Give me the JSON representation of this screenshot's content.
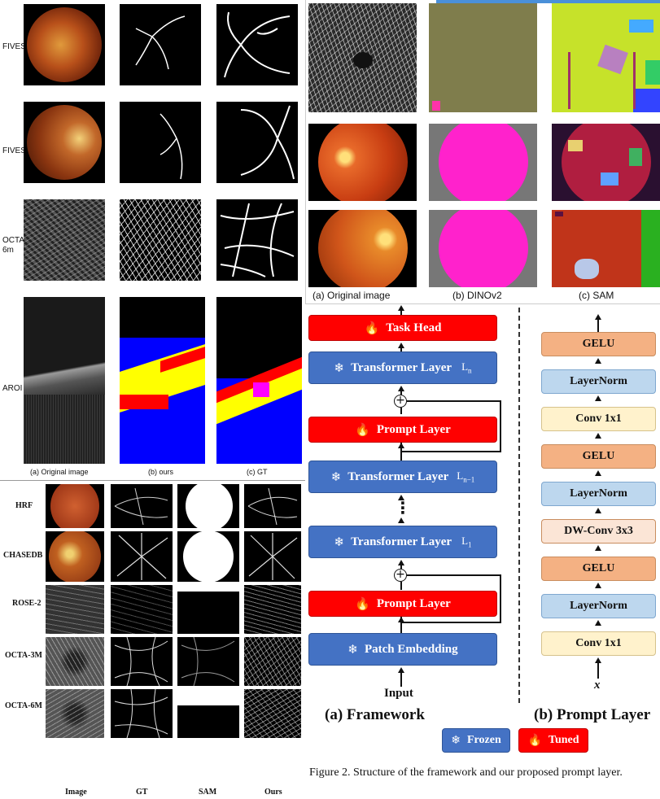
{
  "panel_top_left": {
    "rows": [
      "FIVES",
      "FIVES",
      "OCTA 6m",
      "AROI"
    ],
    "captions": [
      "(a)  Original image",
      "(b)  ours",
      "(c)  GT"
    ]
  },
  "panel_top_right": {
    "captions": [
      "(a)  Original image",
      "(b)  DINOv2",
      "(c)  SAM"
    ]
  },
  "panel_bottom_left": {
    "rows": [
      "HRF",
      "CHASEDB",
      "ROSE-2",
      "OCTA-3M",
      "OCTA-6M"
    ],
    "columns": [
      "Image",
      "GT",
      "SAM",
      "Ours"
    ]
  },
  "framework": {
    "task_head": "Task Head",
    "transformer_layer": "Transformer Layer",
    "sub_n": "L",
    "sub_n_idx": "n",
    "sub_n1_idx": "n−1",
    "sub_1_idx": "1",
    "prompt_layer": "Prompt Layer",
    "patch_embedding": "Patch Embedding",
    "dots": "⋮",
    "input": "Input",
    "title": "(a) Framework"
  },
  "prompt_layer_stack": {
    "blocks": [
      "GELU",
      "LayerNorm",
      "Conv 1x1",
      "GELU",
      "LayerNorm",
      "DW-Conv 3x3",
      "GELU",
      "LayerNorm",
      "Conv 1x1"
    ],
    "input_var": "x",
    "title": "(b) Prompt Layer"
  },
  "legend": {
    "frozen": "Frozen",
    "tuned": "Tuned"
  },
  "figure_caption": "Figure 2.  Structure of the framework and our proposed prompt layer."
}
